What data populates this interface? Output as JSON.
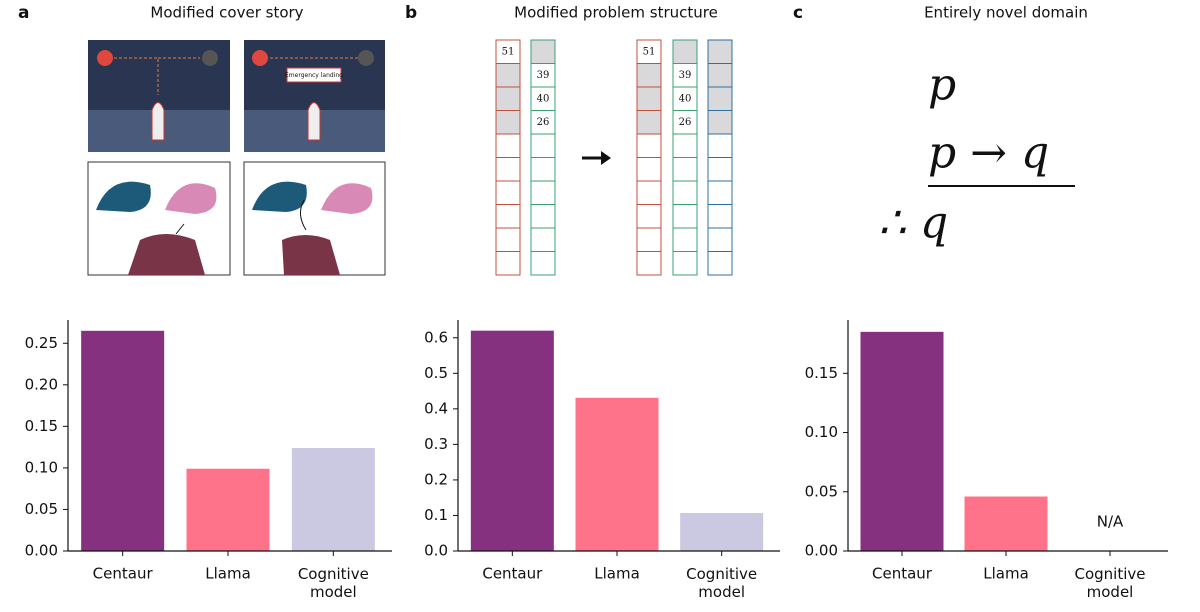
{
  "illustrations": {
    "a": {
      "sign": "Emergency landing"
    },
    "b": {
      "left": [
        "51",
        "39",
        "40",
        "26"
      ],
      "right": [
        "51",
        "39",
        "40",
        "26"
      ]
    },
    "c": {
      "lines": [
        "p",
        "p → q",
        "∴ q"
      ]
    }
  },
  "chart_data": [
    {
      "type": "bar",
      "panel_label": "a",
      "title": "Modified cover story",
      "categories": [
        "Centaur",
        "Llama",
        "Cognitive model"
      ],
      "values": [
        0.265,
        0.099,
        0.124
      ],
      "colors": [
        "#86317f",
        "#ff738a",
        "#cbc8e2"
      ],
      "ylim": [
        0,
        0.278
      ],
      "yticks": [
        {
          "value": 0,
          "label": "0.00"
        },
        {
          "value": 0.05,
          "label": "0.05"
        },
        {
          "value": 0.1,
          "label": "0.10"
        },
        0.15,
        {
          "value": 0.2,
          "label": "0.20"
        },
        0.25
      ],
      "grid": false
    },
    {
      "type": "bar",
      "panel_label": "b",
      "title": "Modified problem structure",
      "categories": [
        "Centaur",
        "Llama",
        "Cognitive model"
      ],
      "values": [
        0.62,
        0.431,
        0.107
      ],
      "colors": [
        "#86317f",
        "#ff738a",
        "#cbc8e2"
      ],
      "ylim": [
        0,
        0.65
      ],
      "yticks": [
        {
          "value": 0,
          "label": "0.0"
        },
        0.1,
        0.2,
        0.3,
        0.4,
        0.5,
        0.6
      ],
      "grid": false
    },
    {
      "type": "bar",
      "panel_label": "c",
      "title": "Entirely novel domain",
      "categories": [
        "Centaur",
        "Llama",
        "Cognitive model"
      ],
      "values": [
        0.185,
        0.046,
        null
      ],
      "value_labels": [
        null,
        null,
        "N/A"
      ],
      "colors": [
        "#86317f",
        "#ff738a",
        "#cbc8e2"
      ],
      "ylim": [
        0,
        0.195
      ],
      "yticks": [
        {
          "value": 0,
          "label": "0.00"
        },
        {
          "value": 0.05,
          "label": "0.05"
        },
        {
          "value": 0.1,
          "label": "0.10"
        },
        0.15
      ],
      "grid": false
    }
  ]
}
